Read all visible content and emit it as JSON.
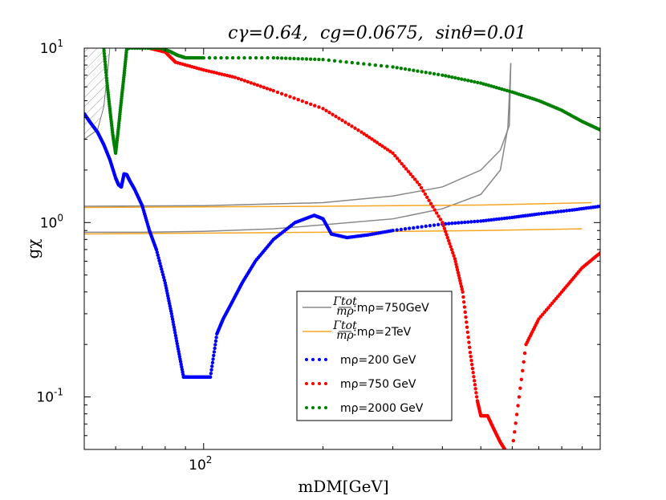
{
  "chart_data": {
    "type": "scatter",
    "title": "cγ=0.64, cg=0.0675, sinθ=0.01",
    "title_parts": {
      "c_gamma": "cγ=0.64,",
      "c_g": "cg=0.0675,",
      "sin_theta": "sinθ=0.01"
    },
    "xlabel": "mDM[GeV]",
    "ylabel": "gχ",
    "xscale": "log",
    "yscale": "log",
    "xlim": [
      50,
      1000
    ],
    "ylim": [
      0.05,
      10
    ],
    "xticks": [
      {
        "value": 100,
        "label": "10",
        "exp": "2"
      }
    ],
    "yticks": [
      {
        "value": 0.1,
        "label": "10",
        "exp": "-1"
      },
      {
        "value": 1,
        "label": "10",
        "exp": "0"
      },
      {
        "value": 10,
        "label": "10",
        "exp": "1"
      }
    ],
    "excluded_region": {
      "name": "hatched exclusion",
      "boundary": [
        [
          50,
          3.0
        ],
        [
          54,
          3.4
        ],
        [
          56,
          4.6
        ],
        [
          57.5,
          8
        ],
        [
          58,
          10
        ]
      ]
    },
    "series": [
      {
        "name": "Γtot/mρ : mρ=750GeV",
        "legend_label": ":mρ=750GeV",
        "color": "#888888",
        "style": "line",
        "segments": [
          [
            [
              50,
              0.88
            ],
            [
              70,
              0.88
            ],
            [
              100,
              0.89
            ],
            [
              150,
              0.92
            ],
            [
              200,
              0.97
            ],
            [
              300,
              1.05
            ],
            [
              400,
              1.2
            ],
            [
              500,
              1.45
            ],
            [
              560,
              2.0
            ],
            [
              585,
              3.5
            ],
            [
              595,
              8.2
            ]
          ],
          [
            [
              50,
              1.24
            ],
            [
              100,
              1.25
            ],
            [
              200,
              1.3
            ],
            [
              300,
              1.42
            ],
            [
              400,
              1.6
            ],
            [
              500,
              2.0
            ],
            [
              560,
              2.6
            ],
            [
              590,
              3.6
            ],
            [
              595,
              8.2
            ]
          ]
        ]
      },
      {
        "name": "Γtot/mρ : mρ=2TeV",
        "legend_label": ":mρ=2TeV",
        "color": "#f5a623",
        "style": "line",
        "segments": [
          [
            [
              50,
              0.86
            ],
            [
              200,
              0.88
            ],
            [
              500,
              0.9
            ],
            [
              900,
              0.92
            ]
          ],
          [
            [
              50,
              1.22
            ],
            [
              200,
              1.24
            ],
            [
              500,
              1.26
            ],
            [
              950,
              1.3
            ]
          ]
        ]
      },
      {
        "name": "mρ=200 GeV",
        "legend_label": "mρ=200 GeV",
        "color": "#0000ff",
        "style": "dots",
        "x": [
          50,
          52,
          54,
          56,
          58,
          60,
          61,
          62,
          63,
          64,
          65,
          67,
          70,
          73,
          76,
          80,
          83,
          86,
          89,
          92,
          98,
          104,
          108,
          112,
          118,
          125,
          135,
          150,
          170,
          190,
          200,
          210,
          230,
          260,
          300,
          400,
          500,
          600,
          700,
          850,
          1000
        ],
        "y": [
          4.2,
          3.7,
          3.3,
          2.8,
          2.3,
          1.8,
          1.65,
          1.6,
          1.9,
          1.88,
          1.75,
          1.55,
          1.25,
          0.9,
          0.7,
          0.45,
          0.3,
          0.195,
          0.13,
          0.13,
          0.13,
          0.13,
          0.23,
          0.28,
          0.35,
          0.45,
          0.6,
          0.8,
          1.0,
          1.1,
          1.05,
          0.86,
          0.82,
          0.85,
          0.9,
          0.98,
          1.02,
          1.07,
          1.12,
          1.18,
          1.24
        ]
      },
      {
        "name": "mρ=750 GeV",
        "legend_label": "mρ=750 GeV",
        "color": "#ff0000",
        "style": "dots",
        "x": [
          73,
          80,
          85,
          100,
          120,
          150,
          200,
          250,
          300,
          350,
          400,
          430,
          450,
          470,
          490,
          500,
          520,
          540,
          560,
          575,
          600,
          650,
          700,
          800,
          900,
          1000
        ],
        "y": [
          10,
          9.5,
          8.3,
          7.5,
          6.8,
          5.7,
          4.5,
          3.3,
          2.5,
          1.65,
          1.0,
          0.62,
          0.4,
          0.18,
          0.095,
          0.078,
          0.078,
          0.065,
          0.055,
          0.05,
          0.05,
          0.2,
          0.28,
          0.4,
          0.55,
          0.67
        ]
      },
      {
        "name": "mρ=2000 GeV",
        "legend_label": "mρ=2000 GeV",
        "color": "#008000",
        "style": "dots",
        "x": [
          56,
          57,
          58,
          59,
          60,
          61,
          62,
          63,
          64,
          65,
          78,
          82,
          86,
          90,
          100,
          150,
          200,
          300,
          400,
          500,
          600,
          700,
          800,
          900,
          1000
        ],
        "y": [
          10,
          6.5,
          4.5,
          3.2,
          2.5,
          3.5,
          5.0,
          7.0,
          10,
          10,
          10,
          9.6,
          9.1,
          8.8,
          8.8,
          8.8,
          8.6,
          7.8,
          7.0,
          6.3,
          5.6,
          5.0,
          4.4,
          3.8,
          3.4
        ]
      }
    ],
    "legend": {
      "position": "lower-center",
      "entries": [
        {
          "series": 0,
          "label_main": ":mρ=750GeV"
        },
        {
          "series": 1,
          "label_main": ":mρ=2TeV"
        },
        {
          "series": 2,
          "label_main": "mρ=200 GeV"
        },
        {
          "series": 3,
          "label_main": "mρ=750 GeV"
        },
        {
          "series": 4,
          "label_main": "mρ=2000 GeV"
        }
      ],
      "fraction_label": {
        "num": "Γtot",
        "den": "mρ"
      }
    }
  }
}
